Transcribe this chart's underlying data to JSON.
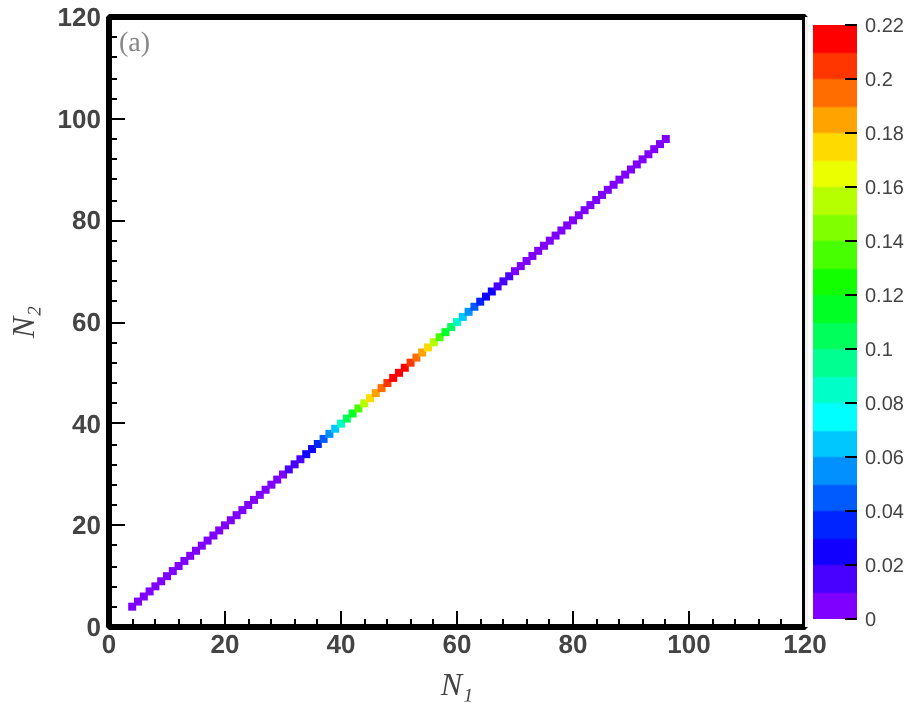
{
  "chart_data": {
    "type": "scatter",
    "xlabel": "N₁",
    "ylabel": "N₂",
    "annotations": [
      "(a)"
    ],
    "marker": "square",
    "grid": false,
    "xlim": [
      0,
      120
    ],
    "ylim": [
      0,
      120
    ],
    "xticks": [
      0,
      20,
      40,
      60,
      80,
      100,
      120
    ],
    "yticks": [
      0,
      20,
      40,
      60,
      80,
      100,
      120
    ],
    "clim": [
      0,
      0.22
    ],
    "cticks": [
      0,
      0.02,
      0.04,
      0.06,
      0.08,
      0.1,
      0.12,
      0.14,
      0.16,
      0.18,
      0.2,
      0.22
    ],
    "x": [
      4,
      5,
      6,
      7,
      8,
      9,
      10,
      11,
      12,
      13,
      14,
      15,
      16,
      17,
      18,
      19,
      20,
      21,
      22,
      23,
      24,
      25,
      26,
      27,
      28,
      29,
      30,
      31,
      32,
      33,
      34,
      35,
      36,
      37,
      38,
      39,
      40,
      41,
      42,
      43,
      44,
      45,
      46,
      47,
      48,
      49,
      50,
      51,
      52,
      53,
      54,
      55,
      56,
      57,
      58,
      59,
      60,
      61,
      62,
      63,
      64,
      65,
      66,
      67,
      68,
      69,
      70,
      71,
      72,
      73,
      74,
      75,
      76,
      77,
      78,
      79,
      80,
      81,
      82,
      83,
      84,
      85,
      86,
      87,
      88,
      89,
      90,
      91,
      92,
      93,
      94,
      95,
      96
    ],
    "values": [
      4,
      5,
      6,
      7,
      8,
      9,
      10,
      11,
      12,
      13,
      14,
      15,
      16,
      17,
      18,
      19,
      20,
      21,
      22,
      23,
      24,
      25,
      26,
      27,
      28,
      29,
      30,
      31,
      32,
      33,
      34,
      35,
      36,
      37,
      38,
      39,
      40,
      41,
      42,
      43,
      44,
      45,
      46,
      47,
      48,
      49,
      50,
      51,
      52,
      53,
      54,
      55,
      56,
      57,
      58,
      59,
      60,
      61,
      62,
      63,
      64,
      65,
      66,
      67,
      68,
      69,
      70,
      71,
      72,
      73,
      74,
      75,
      76,
      77,
      78,
      79,
      80,
      81,
      82,
      83,
      84,
      85,
      86,
      87,
      88,
      89,
      90,
      91,
      92,
      93,
      94,
      95,
      96
    ],
    "cvalues": [
      0,
      0,
      0,
      0,
      0,
      0,
      0,
      0,
      0,
      0,
      0,
      0,
      0,
      0,
      0,
      0,
      0,
      0,
      0,
      0,
      0,
      0,
      0,
      0,
      0,
      0,
      0,
      0.01,
      0.01,
      0.01,
      0.02,
      0.02,
      0.03,
      0.04,
      0.05,
      0.06,
      0.08,
      0.1,
      0.11,
      0.13,
      0.15,
      0.17,
      0.18,
      0.19,
      0.2,
      0.21,
      0.21,
      0.21,
      0.2,
      0.19,
      0.18,
      0.17,
      0.15,
      0.13,
      0.11,
      0.1,
      0.08,
      0.06,
      0.05,
      0.04,
      0.03,
      0.02,
      0.02,
      0.01,
      0.01,
      0.01,
      0,
      0,
      0,
      0,
      0,
      0,
      0,
      0,
      0,
      0,
      0,
      0,
      0,
      0,
      0,
      0,
      0,
      0,
      0,
      0,
      0,
      0,
      0,
      0,
      0,
      0,
      0
    ]
  }
}
